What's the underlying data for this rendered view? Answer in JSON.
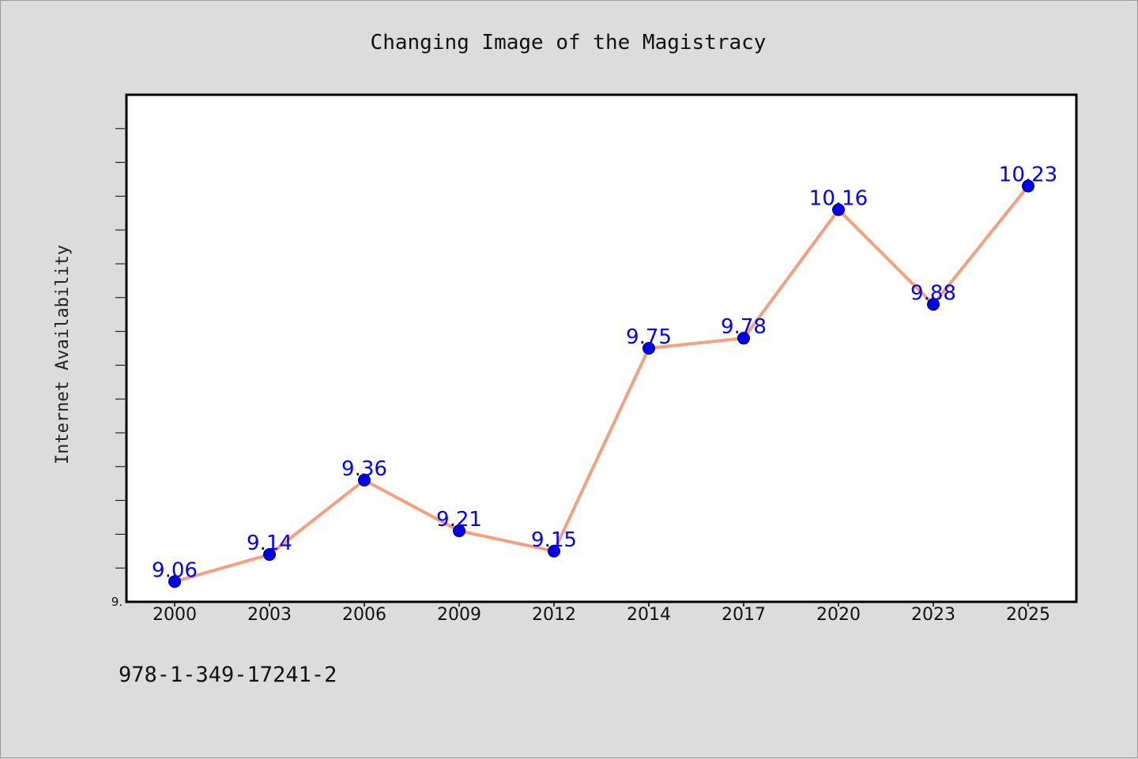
{
  "chart_data": {
    "type": "line",
    "title": "Changing Image of the Magistracy",
    "xlabel": "",
    "ylabel": "Internet Availability",
    "categories": [
      "2000",
      "2003",
      "2006",
      "2009",
      "2012",
      "2014",
      "2017",
      "2020",
      "2023",
      "2025"
    ],
    "series": [
      {
        "values": [
          9.06,
          9.14,
          9.36,
          9.21,
          9.15,
          9.75,
          9.78,
          10.16,
          9.88,
          10.23
        ]
      }
    ],
    "data_labels": [
      "9.06",
      "9.14",
      "9.36",
      "9.21",
      "9.15",
      "9.75",
      "9.78",
      "10.16",
      "9.88",
      "10.23"
    ],
    "ylim": [
      9.0,
      10.5
    ],
    "y_tick_label": "9.",
    "grid": false,
    "colors": {
      "line": "#f4a07f",
      "marker": "#0000ee",
      "label": "#0000ff",
      "background": "#dcdcdc",
      "plot_background": "#ffffff"
    }
  },
  "footer_text": "978-1-349-17241-2"
}
